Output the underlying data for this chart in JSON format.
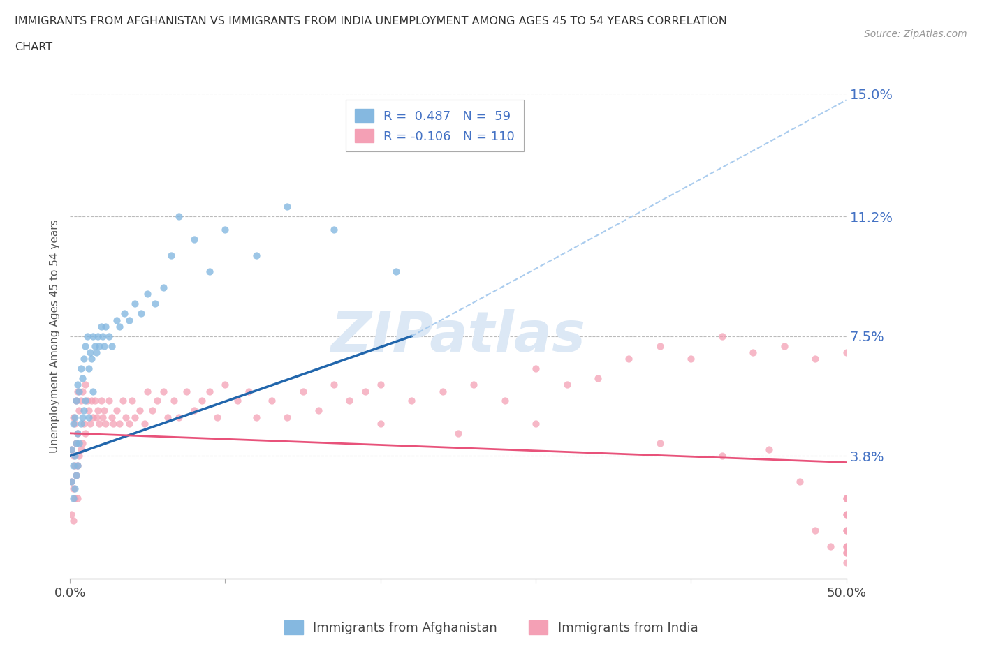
{
  "title_line1": "IMMIGRANTS FROM AFGHANISTAN VS IMMIGRANTS FROM INDIA UNEMPLOYMENT AMONG AGES 45 TO 54 YEARS CORRELATION",
  "title_line2": "CHART",
  "source_text": "Source: ZipAtlas.com",
  "ylabel": "Unemployment Among Ages 45 to 54 years",
  "xlim": [
    0.0,
    0.5
  ],
  "ylim": [
    0.0,
    0.15
  ],
  "yticks": [
    0.038,
    0.075,
    0.112,
    0.15
  ],
  "ytick_labels": [
    "3.8%",
    "7.5%",
    "11.2%",
    "15.0%"
  ],
  "afghanistan_color": "#85b8e0",
  "india_color": "#f4a0b5",
  "afghanistan_line_color": "#2166ac",
  "india_line_color": "#e8527a",
  "afghanistan_trendline_dashed_color": "#aaccee",
  "watermark_text": "ZIPatlas",
  "afg_x": [
    0.001,
    0.001,
    0.002,
    0.002,
    0.002,
    0.003,
    0.003,
    0.003,
    0.004,
    0.004,
    0.004,
    0.005,
    0.005,
    0.005,
    0.006,
    0.006,
    0.007,
    0.007,
    0.008,
    0.008,
    0.009,
    0.009,
    0.01,
    0.01,
    0.011,
    0.012,
    0.012,
    0.013,
    0.014,
    0.015,
    0.015,
    0.016,
    0.017,
    0.018,
    0.019,
    0.02,
    0.021,
    0.022,
    0.023,
    0.025,
    0.027,
    0.03,
    0.032,
    0.035,
    0.038,
    0.042,
    0.046,
    0.05,
    0.055,
    0.06,
    0.065,
    0.07,
    0.08,
    0.09,
    0.1,
    0.12,
    0.14,
    0.17,
    0.21
  ],
  "afg_y": [
    0.04,
    0.03,
    0.048,
    0.035,
    0.025,
    0.05,
    0.038,
    0.028,
    0.055,
    0.042,
    0.032,
    0.06,
    0.045,
    0.035,
    0.058,
    0.042,
    0.065,
    0.048,
    0.062,
    0.05,
    0.068,
    0.052,
    0.072,
    0.055,
    0.075,
    0.065,
    0.05,
    0.07,
    0.068,
    0.075,
    0.058,
    0.072,
    0.07,
    0.075,
    0.072,
    0.078,
    0.075,
    0.072,
    0.078,
    0.075,
    0.072,
    0.08,
    0.078,
    0.082,
    0.08,
    0.085,
    0.082,
    0.088,
    0.085,
    0.09,
    0.1,
    0.112,
    0.105,
    0.095,
    0.108,
    0.1,
    0.115,
    0.108,
    0.095
  ],
  "ind_x": [
    0.001,
    0.001,
    0.001,
    0.002,
    0.002,
    0.002,
    0.002,
    0.003,
    0.003,
    0.003,
    0.004,
    0.004,
    0.004,
    0.005,
    0.005,
    0.005,
    0.005,
    0.006,
    0.006,
    0.007,
    0.007,
    0.008,
    0.008,
    0.009,
    0.01,
    0.01,
    0.011,
    0.012,
    0.013,
    0.014,
    0.015,
    0.016,
    0.017,
    0.018,
    0.019,
    0.02,
    0.021,
    0.022,
    0.023,
    0.025,
    0.027,
    0.028,
    0.03,
    0.032,
    0.034,
    0.036,
    0.038,
    0.04,
    0.042,
    0.045,
    0.048,
    0.05,
    0.053,
    0.056,
    0.06,
    0.063,
    0.067,
    0.07,
    0.075,
    0.08,
    0.085,
    0.09,
    0.095,
    0.1,
    0.108,
    0.115,
    0.12,
    0.13,
    0.14,
    0.15,
    0.16,
    0.17,
    0.18,
    0.19,
    0.2,
    0.22,
    0.24,
    0.26,
    0.28,
    0.3,
    0.32,
    0.34,
    0.36,
    0.38,
    0.4,
    0.42,
    0.44,
    0.46,
    0.48,
    0.5,
    0.52,
    0.54,
    0.56,
    0.58,
    0.6,
    0.2,
    0.25,
    0.3,
    0.38,
    0.42,
    0.45,
    0.47,
    0.48,
    0.49,
    0.5,
    0.51,
    0.52,
    0.53,
    0.54,
    0.55
  ],
  "ind_y": [
    0.04,
    0.03,
    0.02,
    0.05,
    0.038,
    0.028,
    0.018,
    0.048,
    0.035,
    0.025,
    0.055,
    0.042,
    0.032,
    0.058,
    0.045,
    0.035,
    0.025,
    0.052,
    0.038,
    0.055,
    0.04,
    0.058,
    0.042,
    0.048,
    0.06,
    0.045,
    0.055,
    0.052,
    0.048,
    0.055,
    0.05,
    0.055,
    0.05,
    0.052,
    0.048,
    0.055,
    0.05,
    0.052,
    0.048,
    0.055,
    0.05,
    0.048,
    0.052,
    0.048,
    0.055,
    0.05,
    0.048,
    0.055,
    0.05,
    0.052,
    0.048,
    0.058,
    0.052,
    0.055,
    0.058,
    0.05,
    0.055,
    0.05,
    0.058,
    0.052,
    0.055,
    0.058,
    0.05,
    0.06,
    0.055,
    0.058,
    0.05,
    0.055,
    0.05,
    0.058,
    0.052,
    0.06,
    0.055,
    0.058,
    0.06,
    0.055,
    0.058,
    0.06,
    0.055,
    0.065,
    0.06,
    0.062,
    0.068,
    0.072,
    0.068,
    0.075,
    0.07,
    0.072,
    0.068,
    0.07,
    0.025,
    0.02,
    0.015,
    0.01,
    0.008,
    0.048,
    0.045,
    0.048,
    0.042,
    0.038,
    0.04,
    0.03,
    0.015,
    0.01,
    0.005,
    0.025,
    0.02,
    0.015,
    0.01,
    0.008
  ]
}
